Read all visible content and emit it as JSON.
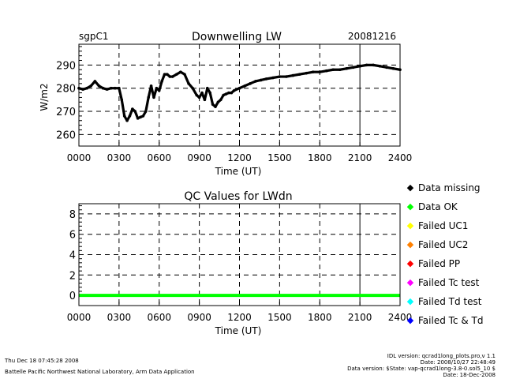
{
  "top_chart": {
    "site": "sgpC1",
    "title": "Downwelling LW",
    "date": "20081216",
    "ylabel": "W/m2",
    "xlabel": "Time (UT)",
    "xticks": [
      "0000",
      "0300",
      "0600",
      "0900",
      "1200",
      "1500",
      "1800",
      "2100",
      "2400"
    ],
    "yticks": [
      "260",
      "270",
      "280",
      "290"
    ]
  },
  "qc_chart": {
    "title": "QC Values for LWdn",
    "xlabel": "Time (UT)",
    "xticks": [
      "0000",
      "0300",
      "0600",
      "0900",
      "1200",
      "1500",
      "1800",
      "2100",
      "2400"
    ],
    "yticks": [
      "0",
      "2",
      "4",
      "6",
      "8"
    ]
  },
  "legend": [
    {
      "label": "Data missing",
      "color": "#000000"
    },
    {
      "label": "Data OK",
      "color": "#00ff00"
    },
    {
      "label": "Failed UC1",
      "color": "#ffff00"
    },
    {
      "label": "Failed UC2",
      "color": "#ff8000"
    },
    {
      "label": "Failed PP",
      "color": "#ff0000"
    },
    {
      "label": "Failed Tc test",
      "color": "#ff00ff"
    },
    {
      "label": "Failed Td test",
      "color": "#00ffff"
    },
    {
      "label": "Failed Tc & Td",
      "color": "#0000ff"
    }
  ],
  "footer": {
    "timestamp": "Thu Dec 18 07:45:28 2008",
    "lab": "Battelle Pacific Northwest National Laboratory, Arm Data Application",
    "idl": "IDL version: qcrad1long_plots.pro,v 1.1",
    "idl_date": "Date: 2008/10/27 22:48:49",
    "data_version": "Data version: $State: vap-qcrad1long-3.8-0.sol5_10 $",
    "data_date": "Date: 18-Dec-2008"
  },
  "chart_data": [
    {
      "type": "scatter",
      "title": "Downwelling LW",
      "xlabel": "Time (UT)",
      "ylabel": "W/m2",
      "xlim": [
        0,
        24
      ],
      "ylim": [
        255,
        299
      ],
      "grid": true,
      "series": [
        {
          "x": [
            0,
            0.3,
            0.6,
            0.9,
            1.2,
            1.5,
            1.8,
            2.1,
            2.4,
            2.7,
            3.0,
            3.2,
            3.4,
            3.6,
            3.8,
            4.0,
            4.2,
            4.4,
            4.6,
            4.8,
            5.0,
            5.2,
            5.4,
            5.6,
            5.8,
            6.0,
            6.2,
            6.4,
            6.6,
            6.8,
            7.0,
            7.3,
            7.6,
            7.9,
            8.2,
            8.5,
            8.8,
            9.0,
            9.2,
            9.4,
            9.6,
            9.8,
            10.0,
            10.2,
            10.4,
            10.6,
            10.8,
            11.0,
            11.2,
            11.4,
            11.6,
            12.0,
            12.4,
            12.8,
            13.2,
            13.6,
            14.0,
            14.5,
            15.0,
            15.5,
            16.0,
            16.5,
            17.0,
            17.5,
            18.0,
            18.5,
            19.0,
            19.5,
            20.0,
            20.5,
            21.0,
            21.5,
            22.0,
            22.5,
            23.0,
            23.5,
            24.0
          ],
          "y": [
            280,
            279.5,
            280,
            281,
            283,
            281,
            280,
            279.5,
            280,
            280,
            280,
            275,
            268,
            266,
            268,
            271,
            270,
            267,
            267.5,
            268,
            270,
            276,
            281,
            276,
            280,
            279,
            283,
            286,
            286,
            285,
            285,
            286,
            287,
            286,
            282,
            280,
            277,
            276,
            278,
            275,
            280,
            278,
            273,
            272,
            274,
            275,
            277,
            277.5,
            278,
            278,
            279,
            280,
            281,
            282,
            283,
            283.5,
            284,
            284.5,
            285,
            285,
            285.5,
            286,
            286.5,
            287,
            287,
            287.5,
            288,
            288,
            288.5,
            289,
            289.5,
            290,
            290,
            289.5,
            289,
            288.5,
            288
          ]
        }
      ]
    },
    {
      "type": "line",
      "title": "QC Values for LWdn",
      "xlabel": "Time (UT)",
      "xlim": [
        0,
        24
      ],
      "ylim": [
        -1,
        9
      ],
      "grid": true,
      "series": [
        {
          "x": [
            0,
            24
          ],
          "y": [
            0,
            0
          ]
        }
      ]
    }
  ]
}
